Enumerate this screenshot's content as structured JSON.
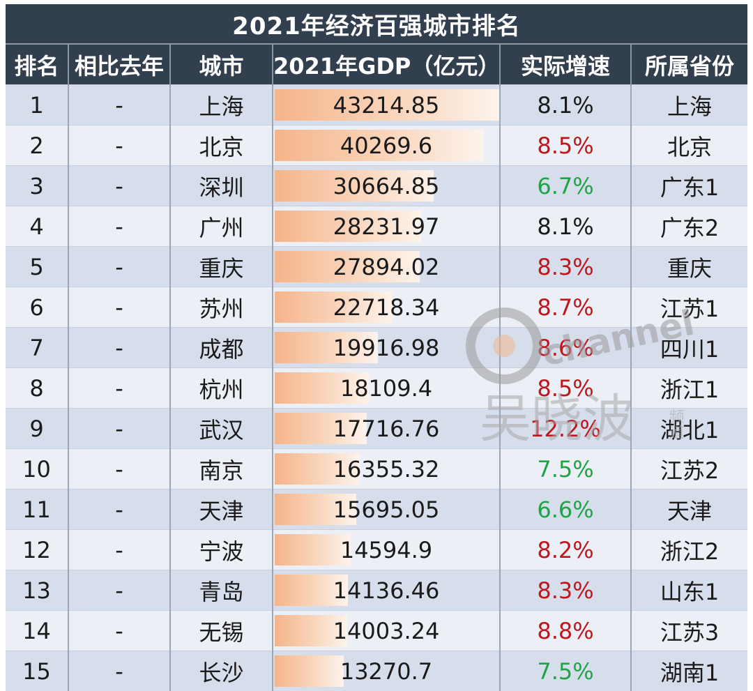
{
  "title": "2021年经济百强城市排名",
  "headers": {
    "rank": "排名",
    "change": "相比去年",
    "city": "城市",
    "gdp": "2021年GDP（亿元）",
    "growth": "实际增速",
    "province": "所属省份"
  },
  "colors": {
    "header_bg": "#323f4f",
    "row_odd": "#d7deeb",
    "row_even": "#eceff6",
    "bar": "#f5b48a",
    "growth_red": "#c0151b",
    "growth_green": "#1fa445"
  },
  "gdp_max": 43214.85,
  "rows": [
    {
      "rank": "1",
      "change": "-",
      "city": "上海",
      "gdp": "43214.85",
      "growth": "8.1%",
      "growth_color": "black",
      "province": "上海"
    },
    {
      "rank": "2",
      "change": "-",
      "city": "北京",
      "gdp": "40269.6",
      "growth": "8.5%",
      "growth_color": "red",
      "province": "北京"
    },
    {
      "rank": "3",
      "change": "-",
      "city": "深圳",
      "gdp": "30664.85",
      "growth": "6.7%",
      "growth_color": "green",
      "province": "广东1"
    },
    {
      "rank": "4",
      "change": "-",
      "city": "广州",
      "gdp": "28231.97",
      "growth": "8.1%",
      "growth_color": "black",
      "province": "广东2"
    },
    {
      "rank": "5",
      "change": "-",
      "city": "重庆",
      "gdp": "27894.02",
      "growth": "8.3%",
      "growth_color": "red",
      "province": "重庆"
    },
    {
      "rank": "6",
      "change": "-",
      "city": "苏州",
      "gdp": "22718.34",
      "growth": "8.7%",
      "growth_color": "red",
      "province": "江苏1"
    },
    {
      "rank": "7",
      "change": "-",
      "city": "成都",
      "gdp": "19916.98",
      "growth": "8.6%",
      "growth_color": "red",
      "province": "四川1"
    },
    {
      "rank": "8",
      "change": "-",
      "city": "杭州",
      "gdp": "18109.4",
      "growth": "8.5%",
      "growth_color": "red",
      "province": "浙江1"
    },
    {
      "rank": "9",
      "change": "-",
      "city": "武汉",
      "gdp": "17716.76",
      "growth": "12.2%",
      "growth_color": "red",
      "province": "湖北1"
    },
    {
      "rank": "10",
      "change": "-",
      "city": "南京",
      "gdp": "16355.32",
      "growth": "7.5%",
      "growth_color": "green",
      "province": "江苏2"
    },
    {
      "rank": "11",
      "change": "-",
      "city": "天津",
      "gdp": "15695.05",
      "growth": "6.6%",
      "growth_color": "green",
      "province": "天津"
    },
    {
      "rank": "12",
      "change": "-",
      "city": "宁波",
      "gdp": "14594.9",
      "growth": "8.2%",
      "growth_color": "red",
      "province": "浙江2"
    },
    {
      "rank": "13",
      "change": "-",
      "city": "青岛",
      "gdp": "14136.46",
      "growth": "8.3%",
      "growth_color": "red",
      "province": "山东1"
    },
    {
      "rank": "14",
      "change": "-",
      "city": "无锡",
      "gdp": "14003.24",
      "growth": "8.8%",
      "growth_color": "red",
      "province": "江苏3"
    },
    {
      "rank": "15",
      "change": "-",
      "city": "长沙",
      "gdp": "13270.7",
      "growth": "7.5%",
      "growth_color": "green",
      "province": "湖南1"
    }
  ],
  "watermark": {
    "latin": "channel wu",
    "cjk": "吴晓波",
    "small": "频道"
  }
}
